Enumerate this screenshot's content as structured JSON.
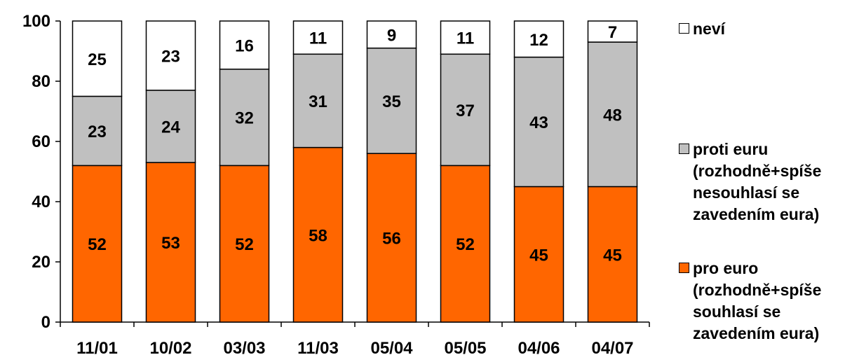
{
  "chart_data": {
    "type": "bar",
    "stacked": true,
    "categories": [
      "11/01",
      "10/02",
      "03/03",
      "11/03",
      "05/04",
      "05/05",
      "04/06",
      "04/07"
    ],
    "series": [
      {
        "name": "pro euro\n(rozhodně+spíše\nsouhlasí se\nzavedením eura)",
        "color": "#FF6600",
        "values": [
          52,
          53,
          52,
          58,
          56,
          52,
          45,
          45
        ]
      },
      {
        "name": "proti euru\n(rozhodně+spíše\nnesouhlasí se\nzavedením eura)",
        "color": "#C0C0C0",
        "values": [
          23,
          24,
          32,
          31,
          35,
          37,
          43,
          48
        ]
      },
      {
        "name": "neví",
        "color": "#FFFFFF",
        "values": [
          25,
          23,
          16,
          11,
          9,
          11,
          12,
          7
        ]
      }
    ],
    "ylim": [
      0,
      100
    ],
    "yticks": [
      0,
      20,
      40,
      60,
      80,
      100
    ],
    "grid": false,
    "legend_position": "right"
  }
}
